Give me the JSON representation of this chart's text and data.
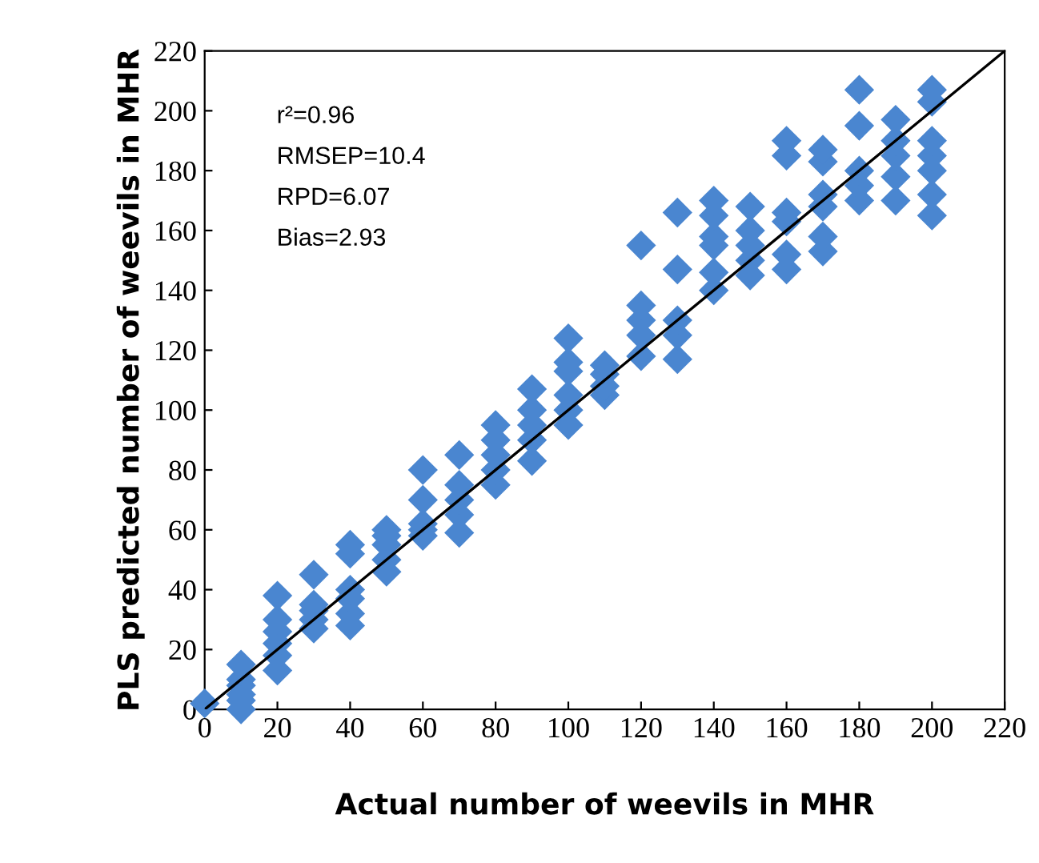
{
  "chart_data": {
    "type": "scatter",
    "xlabel": "Actual number of weevils in MHR",
    "ylabel": "PLS predicted number of weevils in MHR",
    "xlim": [
      0,
      220
    ],
    "ylim": [
      0,
      220
    ],
    "xticks": [
      0,
      20,
      40,
      60,
      80,
      100,
      120,
      140,
      160,
      180,
      200,
      220
    ],
    "yticks": [
      0,
      20,
      40,
      60,
      80,
      100,
      120,
      140,
      160,
      180,
      200,
      220
    ],
    "grid": false,
    "legend": false,
    "marker": "diamond",
    "annotations": [
      "r²=0.96",
      "RMSEP=10.4",
      "RPD=6.07",
      "Bias=2.93"
    ],
    "series": [
      {
        "color": "#4a86d0",
        "x": [
          0,
          10,
          10,
          10,
          10,
          10,
          10,
          20,
          20,
          20,
          20,
          20,
          20,
          30,
          30,
          30,
          30,
          30,
          40,
          40,
          40,
          40,
          40,
          40,
          50,
          50,
          50,
          50,
          50,
          60,
          60,
          60,
          60,
          60,
          70,
          70,
          70,
          70,
          70,
          80,
          80,
          80,
          80,
          80,
          90,
          90,
          90,
          90,
          90,
          100,
          100,
          100,
          100,
          100,
          100,
          110,
          110,
          110,
          110,
          120,
          120,
          120,
          120,
          120,
          130,
          130,
          130,
          130,
          130,
          140,
          140,
          140,
          140,
          140,
          140,
          150,
          150,
          150,
          150,
          150,
          160,
          160,
          160,
          160,
          160,
          160,
          170,
          170,
          170,
          170,
          170,
          170,
          180,
          180,
          180,
          180,
          180,
          190,
          190,
          190,
          190,
          190,
          200,
          200,
          200,
          200,
          200,
          200,
          200
        ],
        "values": [
          2,
          0,
          5,
          10,
          15,
          8,
          3,
          13,
          18,
          22,
          26,
          30,
          38,
          27,
          30,
          35,
          45,
          33,
          28,
          32,
          37,
          40,
          52,
          55,
          46,
          50,
          55,
          60,
          58,
          58,
          62,
          70,
          80,
          60,
          59,
          65,
          70,
          75,
          85,
          75,
          80,
          85,
          90,
          95,
          83,
          90,
          95,
          100,
          107,
          95,
          100,
          105,
          113,
          116,
          124,
          105,
          108,
          112,
          115,
          118,
          125,
          130,
          135,
          155,
          117,
          125,
          130,
          147,
          166,
          140,
          146,
          155,
          158,
          165,
          170,
          145,
          150,
          155,
          160,
          168,
          147,
          152,
          163,
          166,
          185,
          190,
          153,
          158,
          168,
          172,
          183,
          187,
          170,
          175,
          180,
          195,
          207,
          170,
          178,
          185,
          190,
          197,
          165,
          172,
          180,
          185,
          190,
          203,
          207
        ]
      },
      {
        "type": "line",
        "color": "#000000",
        "x": [
          0,
          220
        ],
        "values": [
          0,
          220
        ],
        "marker": "none",
        "line_style": "solid"
      }
    ]
  }
}
